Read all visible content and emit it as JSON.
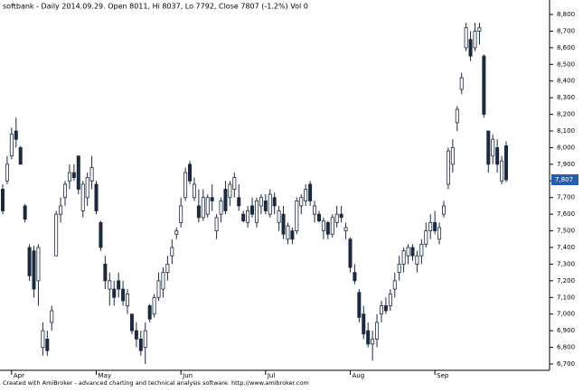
{
  "chart_data": {
    "type": "candlestick",
    "title": "softbank - Daily 2014.09.29. Open 8011, Hi 8037, Lo 7792, Close 7807 (-1.2%) Vol 0",
    "footer": "Created with AmiBroker - advanced charting and technical analysis software. http://www.amibroker.com",
    "up_color": "#ffffff",
    "down_color": "#1c2a40",
    "outline_color": "#1c2a40",
    "ylim": [
      6662,
      8887
    ],
    "yticks": [
      {
        "value": 6700,
        "label": "6,700"
      },
      {
        "value": 6800,
        "label": "6,800"
      },
      {
        "value": 6900,
        "label": "6,900"
      },
      {
        "value": 7000,
        "label": "7,000"
      },
      {
        "value": 7100,
        "label": "7,100"
      },
      {
        "value": 7200,
        "label": "7,200"
      },
      {
        "value": 7300,
        "label": "7,300"
      },
      {
        "value": 7400,
        "label": "7,400"
      },
      {
        "value": 7500,
        "label": "7,500"
      },
      {
        "value": 7600,
        "label": "7,600"
      },
      {
        "value": 7700,
        "label": "7,700"
      },
      {
        "value": 7800,
        "label": "7,800"
      },
      {
        "value": 7900,
        "label": "7,900"
      },
      {
        "value": 8000,
        "label": "8,000"
      },
      {
        "value": 8100,
        "label": "8,100"
      },
      {
        "value": 8200,
        "label": "8,200"
      },
      {
        "value": 8300,
        "label": "8,300"
      },
      {
        "value": 8400,
        "label": "8,400"
      },
      {
        "value": 8500,
        "label": "8,500"
      },
      {
        "value": 8600,
        "label": "8,600"
      },
      {
        "value": 8700,
        "label": "8,700"
      },
      {
        "value": 8800,
        "label": "8,800"
      }
    ],
    "last_price": {
      "value": 7807,
      "label": "7,807"
    },
    "categories": [
      null,
      null,
      "Apr",
      null,
      null,
      null,
      null,
      null,
      null,
      null,
      null,
      null,
      null,
      null,
      null,
      null,
      null,
      null,
      null,
      null,
      null,
      "May",
      null,
      null,
      null,
      null,
      null,
      null,
      null,
      null,
      null,
      null,
      null,
      null,
      null,
      null,
      null,
      null,
      null,
      null,
      "Jun",
      null,
      null,
      null,
      null,
      null,
      null,
      null,
      null,
      null,
      null,
      null,
      null,
      null,
      null,
      null,
      null,
      null,
      null,
      "Jul",
      null,
      null,
      null,
      null,
      null,
      null,
      null,
      null,
      null,
      null,
      null,
      null,
      null,
      null,
      null,
      null,
      null,
      null,
      "Aug",
      null,
      null,
      null,
      null,
      null,
      null,
      null,
      null,
      null,
      null,
      null,
      null,
      null,
      null,
      null,
      null,
      null,
      null,
      "Sep",
      null,
      null,
      null,
      null,
      null,
      null,
      null,
      null,
      null,
      null,
      null,
      null,
      null,
      null,
      null,
      null
    ],
    "ohlc": [
      [
        7750,
        7780,
        7600,
        7620
      ],
      [
        7800,
        7950,
        7780,
        7900
      ],
      [
        7950,
        8120,
        7930,
        8080
      ],
      [
        8100,
        8180,
        8000,
        8050
      ],
      [
        8000,
        8010,
        7900,
        7900
      ],
      [
        7650,
        7660,
        7550,
        7570
      ],
      [
        7400,
        7420,
        7200,
        7230
      ],
      [
        7380,
        7410,
        7100,
        7150
      ],
      [
        7200,
        7420,
        7050,
        7400
      ],
      [
        6800,
        6950,
        6750,
        6900
      ],
      [
        6850,
        6900,
        6750,
        6780
      ],
      [
        6950,
        7050,
        6900,
        7020
      ],
      [
        7350,
        7620,
        7350,
        7600
      ],
      [
        7600,
        7700,
        7550,
        7650
      ],
      [
        7700,
        7800,
        7650,
        7780
      ],
      [
        7800,
        7900,
        7750,
        7850
      ],
      [
        7850,
        7900,
        7800,
        7820
      ],
      [
        7950,
        7950,
        7720,
        7750
      ],
      [
        7620,
        7800,
        7580,
        7780
      ],
      [
        7700,
        7850,
        7650,
        7820
      ],
      [
        7800,
        7950,
        7750,
        7880
      ],
      [
        7780,
        7800,
        7600,
        7620
      ],
      [
        7550,
        7560,
        7380,
        7400
      ],
      [
        7300,
        7350,
        7150,
        7200
      ],
      [
        7150,
        7250,
        7050,
        7200
      ],
      [
        7150,
        7200,
        7050,
        7100
      ],
      [
        7200,
        7250,
        7100,
        7150
      ],
      [
        7150,
        7200,
        7050,
        7080
      ],
      [
        7050,
        7150,
        7000,
        7120
      ],
      [
        7000,
        7000,
        6880,
        6900
      ],
      [
        6900,
        6950,
        6800,
        6850
      ],
      [
        6850,
        6900,
        6750,
        6780
      ],
      [
        6800,
        6950,
        6700,
        6900
      ],
      [
        7050,
        7060,
        6950,
        6970
      ],
      [
        7000,
        7120,
        6980,
        7100
      ],
      [
        7100,
        7250,
        7080,
        7200
      ],
      [
        7150,
        7280,
        7100,
        7250
      ],
      [
        7250,
        7350,
        7200,
        7300
      ],
      [
        7350,
        7450,
        7300,
        7400
      ],
      [
        7480,
        7520,
        7450,
        7500
      ],
      [
        7550,
        7700,
        7520,
        7650
      ],
      [
        7700,
        7880,
        7680,
        7850
      ],
      [
        7900,
        7920,
        7780,
        7800
      ],
      [
        7700,
        7820,
        7680,
        7780
      ],
      [
        7650,
        7750,
        7550,
        7580
      ],
      [
        7580,
        7750,
        7560,
        7700
      ],
      [
        7600,
        7720,
        7580,
        7700
      ],
      [
        7700,
        7780,
        7620,
        7680
      ],
      [
        7500,
        7600,
        7450,
        7580
      ],
      [
        7600,
        7700,
        7550,
        7680
      ],
      [
        7750,
        7800,
        7600,
        7620
      ],
      [
        7700,
        7800,
        7650,
        7780
      ],
      [
        7750,
        7850,
        7700,
        7820
      ],
      [
        7700,
        7780,
        7620,
        7650
      ],
      [
        7600,
        7620,
        7550,
        7560
      ],
      [
        7550,
        7650,
        7520,
        7620
      ],
      [
        7650,
        7700,
        7580,
        7600
      ],
      [
        7550,
        7700,
        7520,
        7680
      ],
      [
        7650,
        7720,
        7600,
        7700
      ],
      [
        7680,
        7720,
        7600,
        7620
      ],
      [
        7600,
        7750,
        7580,
        7720
      ],
      [
        7700,
        7730,
        7600,
        7650
      ],
      [
        7550,
        7650,
        7500,
        7620
      ],
      [
        7600,
        7650,
        7450,
        7480
      ],
      [
        7450,
        7550,
        7420,
        7530
      ],
      [
        7500,
        7520,
        7420,
        7450
      ],
      [
        7500,
        7700,
        7480,
        7680
      ],
      [
        7650,
        7720,
        7600,
        7700
      ],
      [
        7680,
        7780,
        7650,
        7750
      ],
      [
        7780,
        7800,
        7650,
        7680
      ],
      [
        7600,
        7680,
        7550,
        7650
      ],
      [
        7600,
        7620,
        7550,
        7560
      ],
      [
        7500,
        7580,
        7450,
        7560
      ],
      [
        7550,
        7560,
        7450,
        7480
      ],
      [
        7480,
        7600,
        7460,
        7580
      ],
      [
        7550,
        7650,
        7520,
        7600
      ],
      [
        7600,
        7650,
        7550,
        7580
      ],
      [
        7500,
        7550,
        7450,
        7520
      ],
      [
        7450,
        7460,
        7250,
        7280
      ],
      [
        7250,
        7300,
        7180,
        7200
      ],
      [
        7130,
        7150,
        6950,
        6980
      ],
      [
        7000,
        7050,
        6850,
        6880
      ],
      [
        6900,
        6950,
        6800,
        6820
      ],
      [
        6820,
        6900,
        6720,
        6850
      ],
      [
        6850,
        7000,
        6800,
        6950
      ],
      [
        7000,
        7080,
        6950,
        7050
      ],
      [
        7050,
        7100,
        7000,
        7020
      ],
      [
        7050,
        7150,
        7020,
        7120
      ],
      [
        7150,
        7250,
        7100,
        7200
      ],
      [
        7250,
        7350,
        7200,
        7300
      ],
      [
        7300,
        7400,
        7250,
        7380
      ],
      [
        7350,
        7420,
        7300,
        7400
      ],
      [
        7400,
        7420,
        7320,
        7350
      ],
      [
        7300,
        7380,
        7250,
        7350
      ],
      [
        7350,
        7450,
        7300,
        7420
      ],
      [
        7420,
        7550,
        7400,
        7500
      ],
      [
        7500,
        7600,
        7450,
        7550
      ],
      [
        7550,
        7620,
        7480,
        7500
      ],
      [
        7450,
        7550,
        7420,
        7520
      ],
      [
        7600,
        7680,
        7580,
        7650
      ],
      [
        7780,
        8000,
        7750,
        7980
      ],
      [
        7900,
        8050,
        7850,
        8000
      ],
      [
        8150,
        8250,
        8100,
        8230
      ],
      [
        8350,
        8450,
        8320,
        8420
      ],
      [
        8600,
        8750,
        8580,
        8720
      ],
      [
        8650,
        8700,
        8520,
        8550
      ],
      [
        8600,
        8750,
        8580,
        8700
      ],
      [
        8700,
        8750,
        8620,
        8720
      ],
      [
        8550,
        8560,
        8180,
        8200
      ],
      [
        8100,
        8100,
        7850,
        7900
      ],
      [
        7950,
        8080,
        7900,
        8050
      ],
      [
        8000,
        8050,
        7850,
        7900
      ],
      [
        7800,
        7950,
        7780,
        7920
      ],
      [
        8011,
        8037,
        7792,
        7807
      ]
    ]
  }
}
